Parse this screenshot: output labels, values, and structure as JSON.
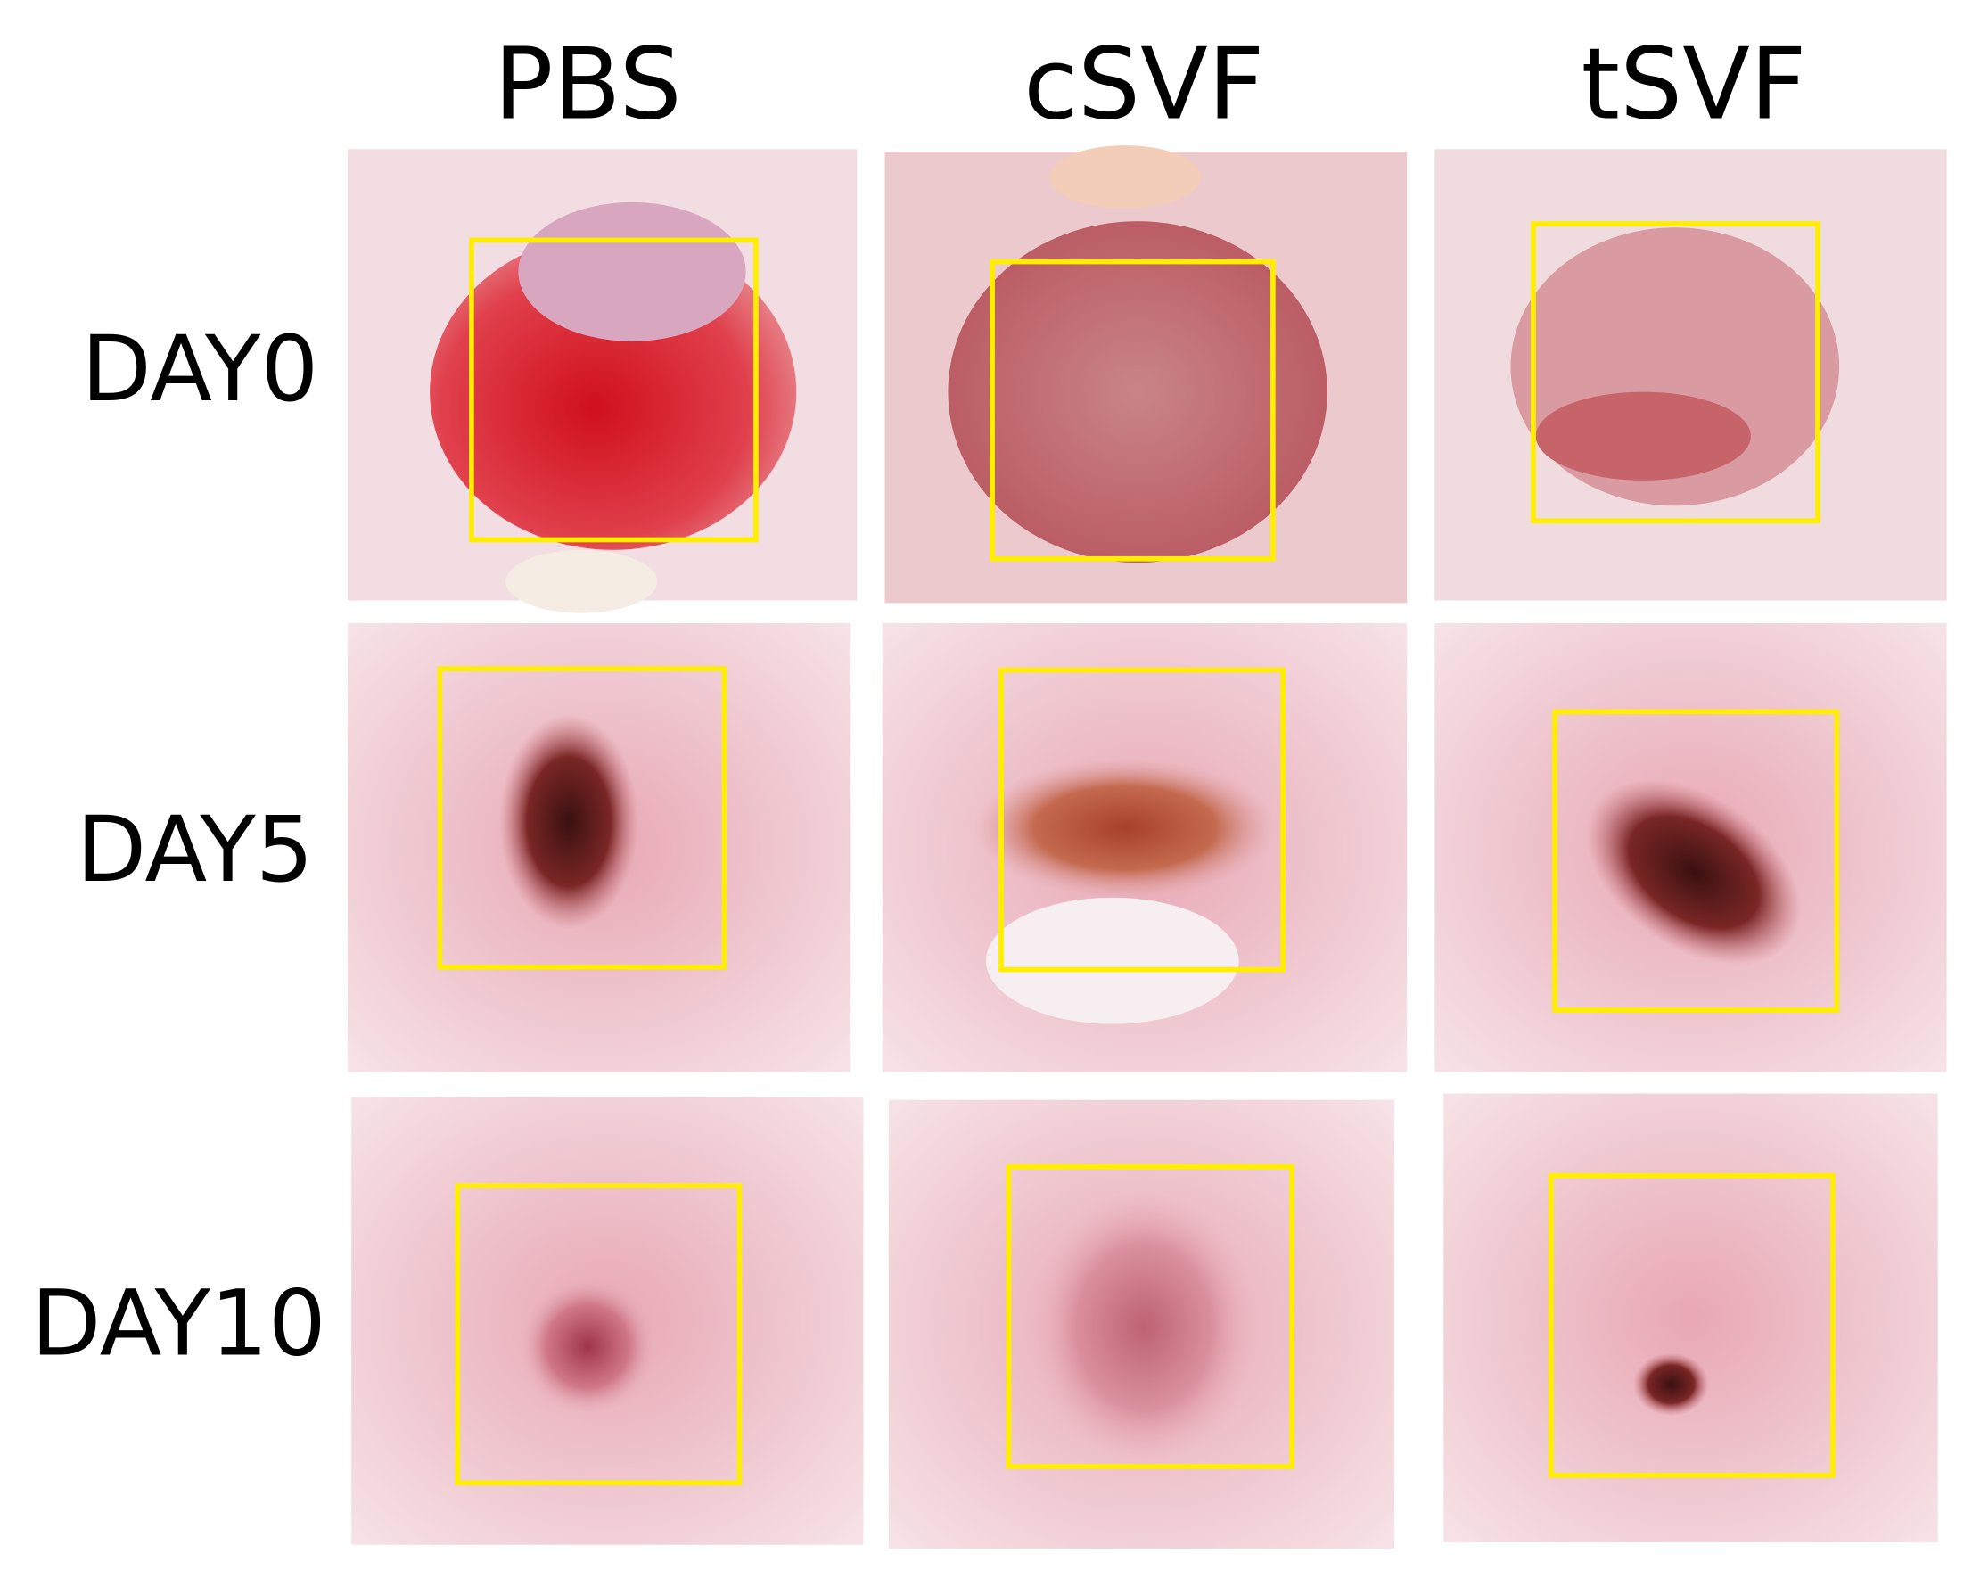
{
  "columns": [
    "PBS",
    "cSVF",
    "tSVF"
  ],
  "rows": [
    "DAY0",
    "DAY5",
    "DAY10"
  ]
}
